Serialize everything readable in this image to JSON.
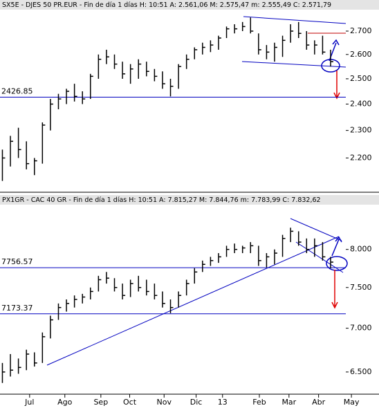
{
  "chart_data": [
    {
      "type": "ohlc",
      "title": "SX5E - DJES 50 PR.EUR - Fin de día 1 días H: 10:51 A: 2.561,06 M: 2.575,47 m: 2.555,49 C: 2.571,79",
      "x": [
        0,
        1,
        2,
        3,
        4,
        5,
        6,
        7,
        8,
        9,
        10,
        11,
        12,
        13,
        14,
        15,
        16,
        17,
        18,
        19,
        20,
        21,
        22,
        23,
        24,
        25,
        26,
        27,
        28,
        29,
        30,
        31,
        32,
        33,
        34,
        35,
        36,
        37,
        38,
        39,
        40,
        41
      ],
      "high": [
        2230,
        2280,
        2310,
        2260,
        2200,
        2330,
        2420,
        2440,
        2460,
        2480,
        2450,
        2520,
        2600,
        2620,
        2600,
        2570,
        2560,
        2580,
        2570,
        2540,
        2530,
        2500,
        2560,
        2600,
        2630,
        2650,
        2660,
        2680,
        2720,
        2730,
        2740,
        2760,
        2690,
        2640,
        2650,
        2680,
        2730,
        2740,
        2700,
        2660,
        2680,
        2620
      ],
      "low": [
        2120,
        2170,
        2200,
        2160,
        2140,
        2180,
        2300,
        2380,
        2400,
        2410,
        2400,
        2420,
        2500,
        2560,
        2540,
        2500,
        2480,
        2500,
        2510,
        2490,
        2460,
        2430,
        2460,
        2540,
        2580,
        2600,
        2610,
        2620,
        2670,
        2690,
        2700,
        2690,
        2600,
        2580,
        2570,
        2590,
        2650,
        2670,
        2620,
        2600,
        2600,
        2550
      ],
      "close": [
        2200,
        2260,
        2230,
        2180,
        2190,
        2320,
        2400,
        2420,
        2450,
        2430,
        2420,
        2510,
        2580,
        2590,
        2560,
        2520,
        2540,
        2560,
        2530,
        2510,
        2480,
        2470,
        2550,
        2580,
        2620,
        2630,
        2640,
        2670,
        2710,
        2710,
        2720,
        2700,
        2620,
        2610,
        2630,
        2660,
        2700,
        2690,
        2640,
        2640,
        2610,
        2570
      ],
      "color": "#000000",
      "xlim": [
        -0.3,
        42.9
      ],
      "ylim": [
        2105,
        2795
      ],
      "log_scale": true,
      "yticks": [
        {
          "value": 2200,
          "label": "2.200"
        },
        {
          "value": 2300,
          "label": "2.300"
        },
        {
          "value": 2400,
          "label": "2.400"
        },
        {
          "value": 2500,
          "label": "2.500"
        },
        {
          "value": 2600,
          "label": "2.600"
        },
        {
          "value": 2700,
          "label": "2.700"
        }
      ],
      "ref_lines": [
        2426.85
      ],
      "ref_color": "#0000c0"
    },
    {
      "type": "ohlc",
      "title": "PX1GR - CAC 40 GR - Fin de día 1 días H: 10:51 A: 7.815,27 M: 7.844,76 m: 7.783,99 C: 7.832,62",
      "x": [
        0,
        1,
        2,
        3,
        4,
        5,
        6,
        7,
        8,
        9,
        10,
        11,
        12,
        13,
        14,
        15,
        16,
        17,
        18,
        19,
        20,
        21,
        22,
        23,
        24,
        25,
        26,
        27,
        28,
        29,
        30,
        31,
        32,
        33,
        34,
        35,
        36,
        37,
        38,
        39,
        40,
        41
      ],
      "high": [
        6600,
        6700,
        6650,
        6750,
        6720,
        6950,
        7150,
        7300,
        7350,
        7400,
        7420,
        7500,
        7650,
        7700,
        7620,
        7550,
        7600,
        7650,
        7600,
        7550,
        7450,
        7350,
        7450,
        7600,
        7750,
        7850,
        7900,
        7950,
        8050,
        8080,
        8050,
        8100,
        8050,
        7950,
        8000,
        8200,
        8300,
        8250,
        8150,
        8150,
        8100,
        7900
      ],
      "low": [
        6380,
        6450,
        6480,
        6520,
        6560,
        6600,
        6880,
        7100,
        7200,
        7250,
        7300,
        7350,
        7450,
        7550,
        7450,
        7350,
        7380,
        7450,
        7400,
        7350,
        7250,
        7180,
        7250,
        7400,
        7550,
        7700,
        7780,
        7820,
        7900,
        7950,
        7950,
        7950,
        7780,
        7760,
        7800,
        7900,
        8100,
        8050,
        7950,
        7900,
        7850,
        7750
      ],
      "close": [
        6500,
        6520,
        6550,
        6700,
        6600,
        6900,
        7100,
        7250,
        7300,
        7350,
        7380,
        7450,
        7600,
        7620,
        7500,
        7400,
        7550,
        7500,
        7450,
        7400,
        7300,
        7250,
        7400,
        7550,
        7700,
        7800,
        7850,
        7900,
        8000,
        8000,
        8020,
        8050,
        7850,
        7900,
        7950,
        8150,
        8250,
        8100,
        8000,
        8050,
        7900,
        7830
      ],
      "color": "#000000",
      "xlim": [
        -0.3,
        42.9
      ],
      "ylim": [
        6260,
        8630
      ],
      "log_scale": true,
      "yticks": [
        {
          "value": 6500,
          "label": "6.500"
        },
        {
          "value": 7000,
          "label": "7.000"
        },
        {
          "value": 7500,
          "label": "7.500"
        },
        {
          "value": 8000,
          "label": "8.000"
        }
      ],
      "xticks": [
        {
          "value": 3.4,
          "label": "Jul"
        },
        {
          "value": 7.8,
          "label": "Ago"
        },
        {
          "value": 12.3,
          "label": "Sep"
        },
        {
          "value": 15.9,
          "label": "Oct"
        },
        {
          "value": 20.2,
          "label": "Nov"
        },
        {
          "value": 24.2,
          "label": "Dic"
        },
        {
          "value": 27.5,
          "label": "13"
        },
        {
          "value": 32.1,
          "label": "Feb"
        },
        {
          "value": 35.8,
          "label": "Mar"
        },
        {
          "value": 39.5,
          "label": "Abr"
        },
        {
          "value": 43.6,
          "label": "May"
        }
      ],
      "ref_lines": [
        7756.57,
        7173.37
      ],
      "ref_color": "#0000c0"
    }
  ]
}
